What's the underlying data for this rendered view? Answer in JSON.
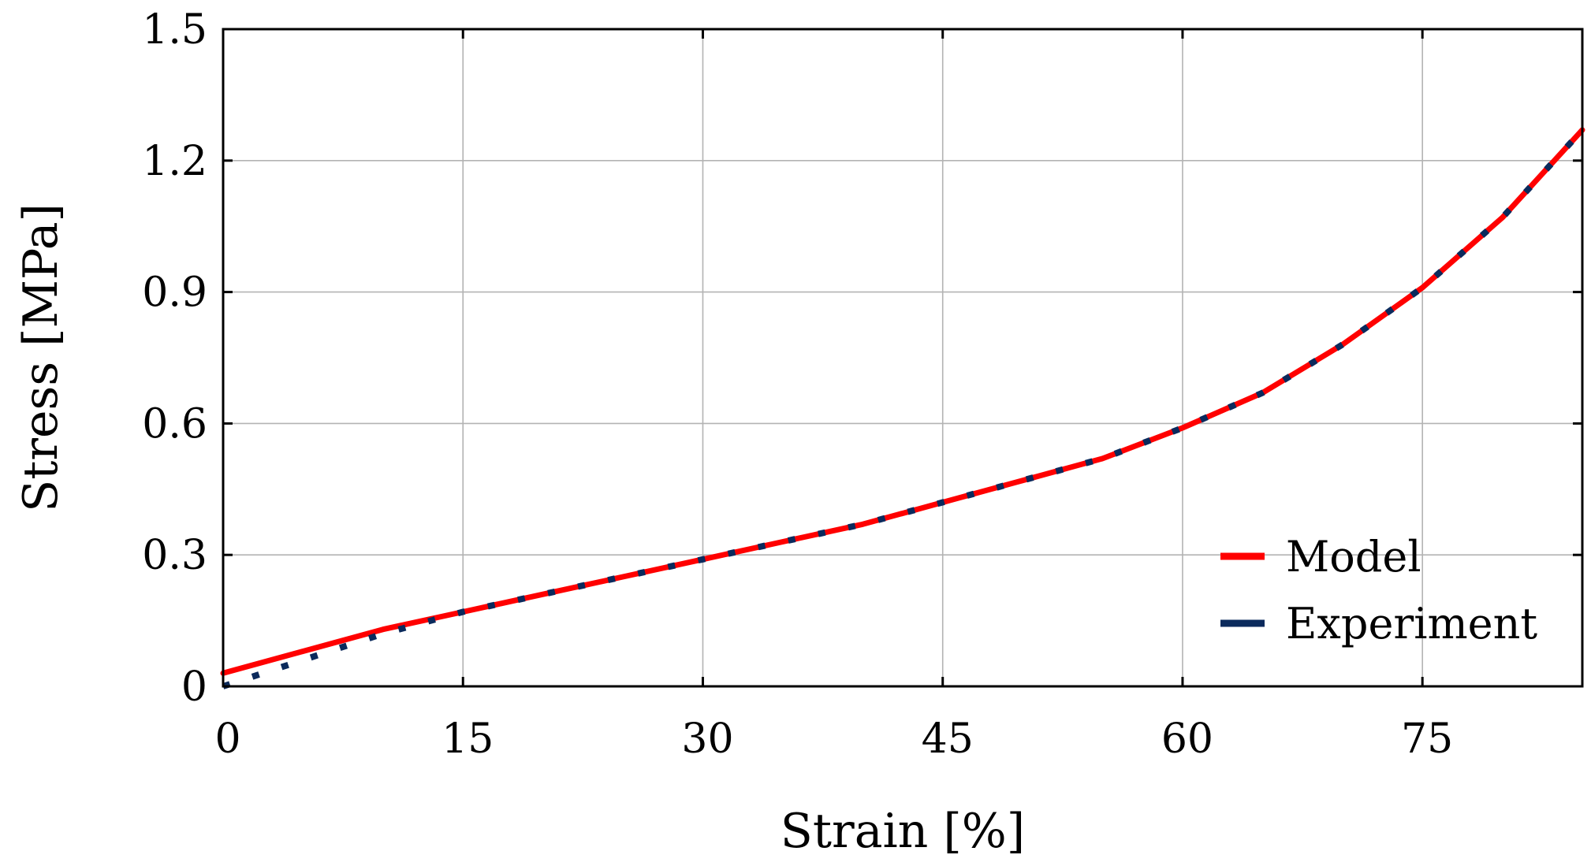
{
  "chart_data": {
    "type": "line",
    "xlabel": "Strain [%]",
    "ylabel": "Stress [MPa]",
    "xlim": [
      0,
      85
    ],
    "ylim": [
      0,
      1.5
    ],
    "x_ticks": [
      0,
      15,
      30,
      45,
      60,
      75
    ],
    "x_tick_labels": [
      "0",
      "15",
      "30",
      "45",
      "60",
      "75"
    ],
    "y_ticks": [
      0,
      0.3,
      0.6,
      0.9,
      1.2,
      1.5
    ],
    "y_tick_labels": [
      "0",
      "0.3",
      "0.6",
      "0.9",
      "1.2",
      "1.5"
    ],
    "grid": true,
    "legend_position": "bottom-right",
    "series": [
      {
        "name": "Model",
        "color": "#ff0000",
        "style": "solid",
        "x": [
          0,
          5,
          10,
          15,
          20,
          25,
          30,
          35,
          40,
          45,
          50,
          55,
          60,
          65,
          70,
          75,
          80,
          85
        ],
        "y": [
          0.03,
          0.08,
          0.13,
          0.17,
          0.21,
          0.25,
          0.29,
          0.33,
          0.37,
          0.42,
          0.47,
          0.52,
          0.59,
          0.67,
          0.78,
          0.91,
          1.07,
          1.27
        ]
      },
      {
        "name": "Experiment",
        "color": "#0b2a5c",
        "style": "dotted",
        "x": [
          0,
          5,
          10,
          15,
          20,
          25,
          30,
          35,
          40,
          45,
          50,
          55,
          60,
          65,
          70,
          75,
          80,
          85
        ],
        "y": [
          0.0,
          0.06,
          0.12,
          0.17,
          0.21,
          0.25,
          0.29,
          0.33,
          0.37,
          0.42,
          0.47,
          0.52,
          0.59,
          0.67,
          0.78,
          0.91,
          1.07,
          1.27
        ]
      }
    ]
  }
}
